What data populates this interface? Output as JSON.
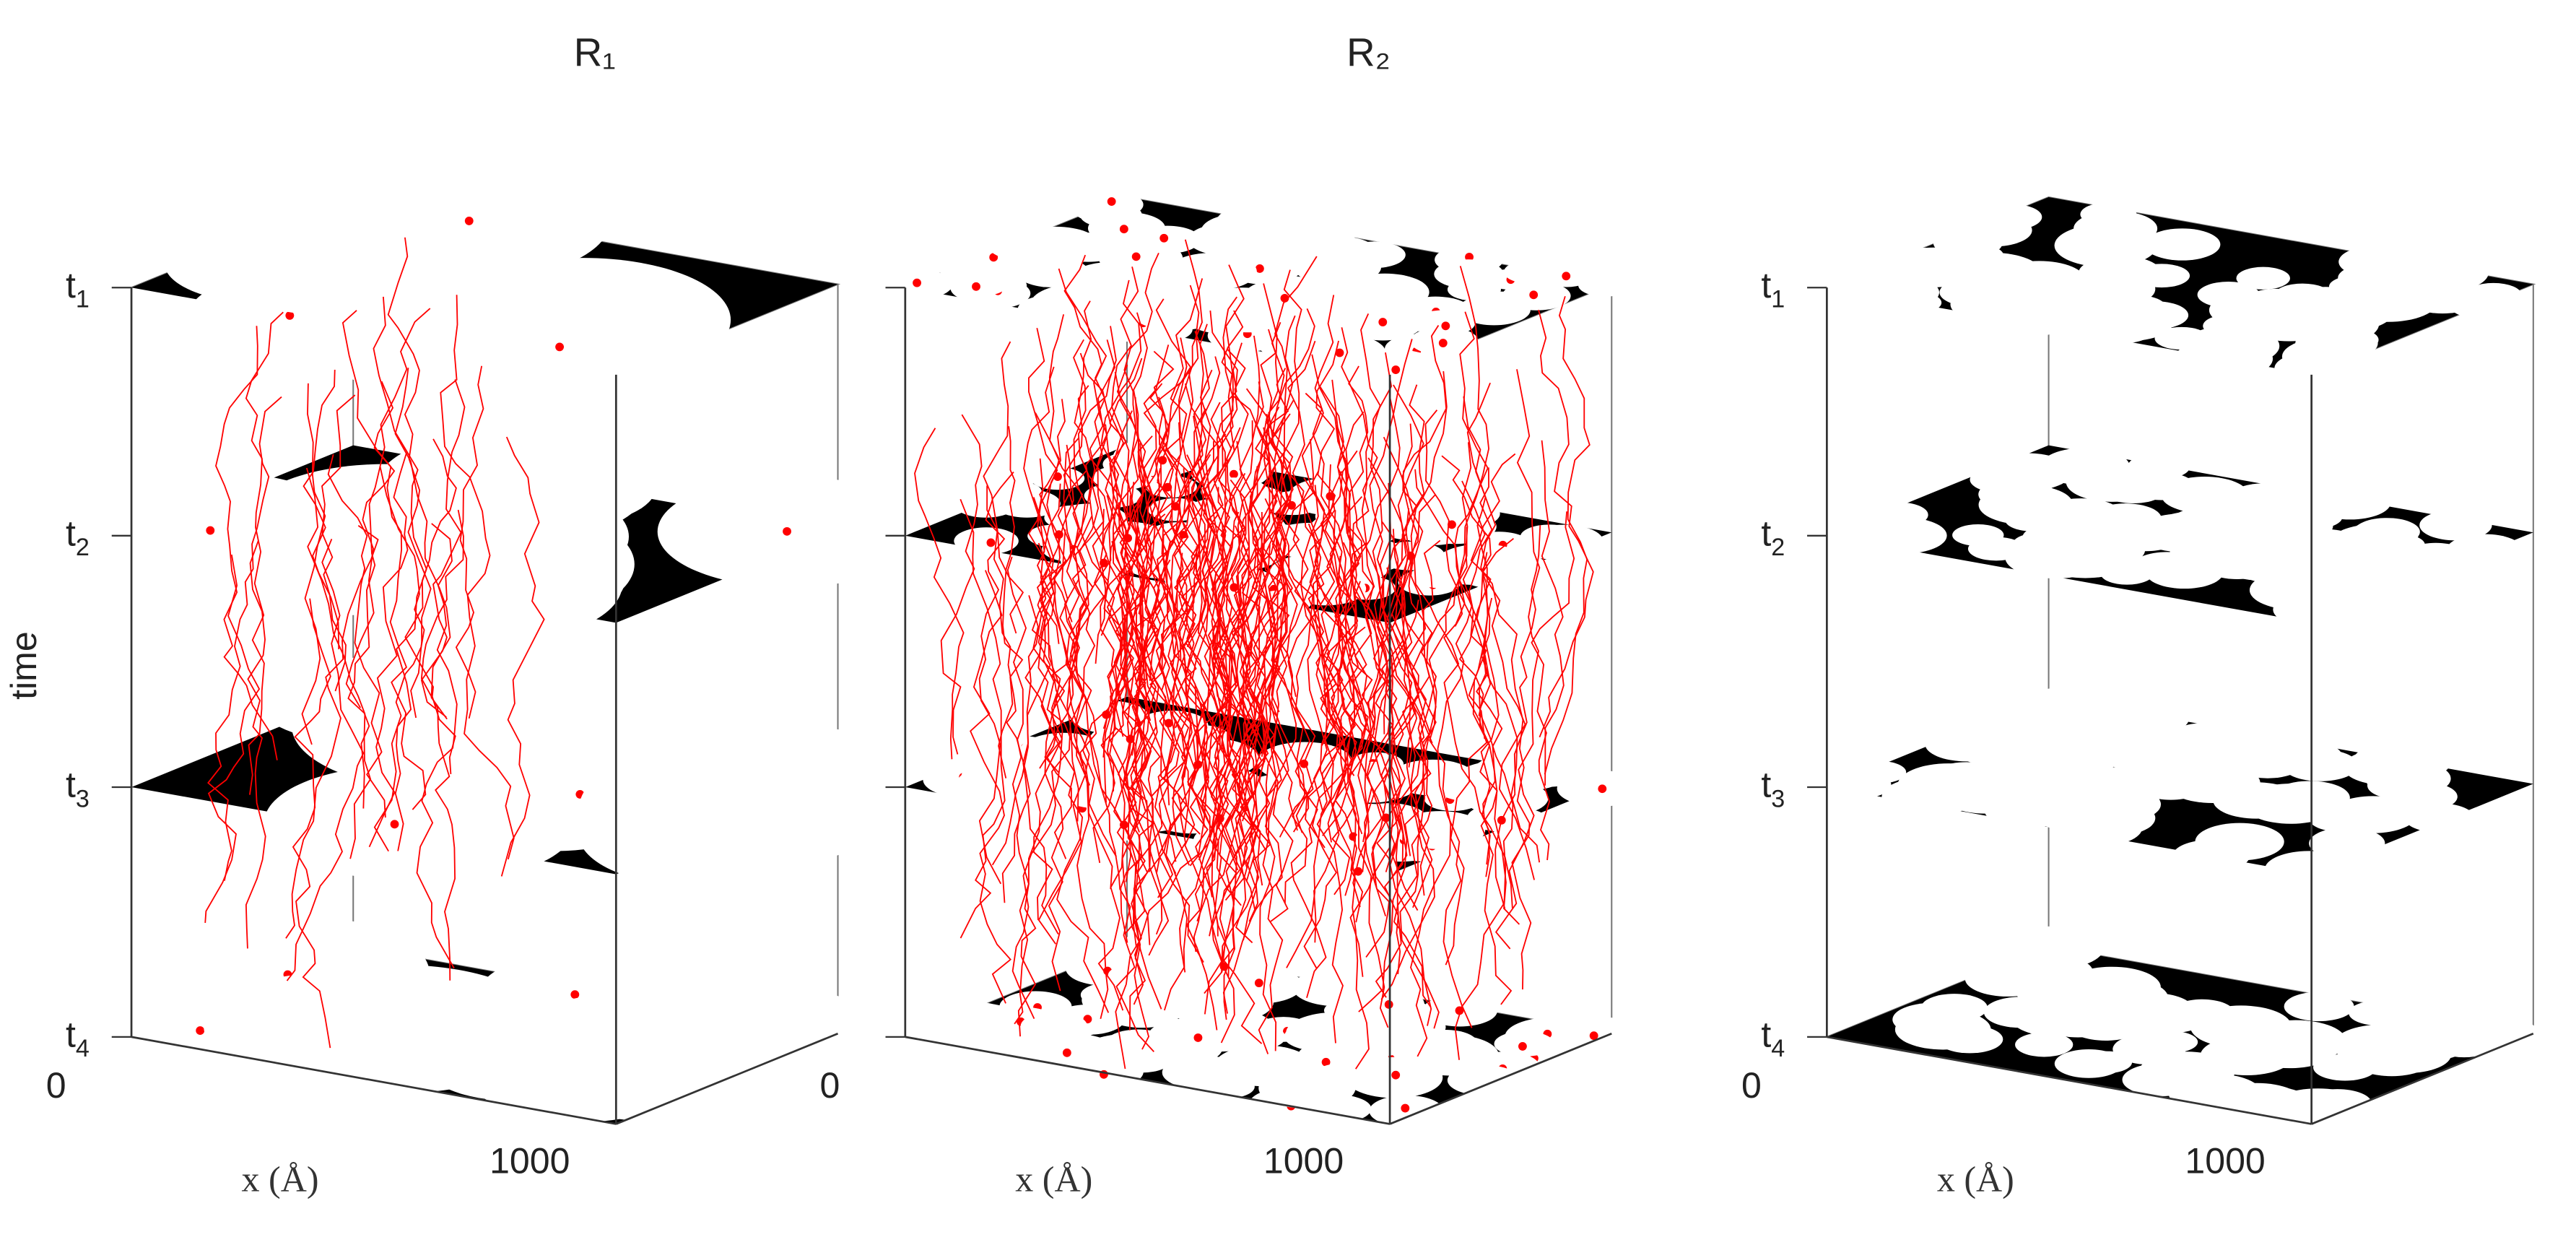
{
  "chart_data": [
    {
      "type": "scatter",
      "title": "R₁",
      "ylabel": "time",
      "xlabel": "x (Å)",
      "x_ticks": [
        "0",
        "1000"
      ],
      "time_ticks": [
        {
          "base": "t",
          "sub": "1"
        },
        {
          "base": "t",
          "sub": "2"
        },
        {
          "base": "t",
          "sub": "3"
        },
        {
          "base": "t",
          "sub": "4"
        }
      ],
      "xlim": [
        0,
        1000
      ],
      "grid": false,
      "trajectories": true,
      "points": true,
      "colors": {
        "trajectory": "#ff0000",
        "domain": "#000000",
        "background": "#ffffff"
      }
    },
    {
      "type": "scatter",
      "title": "R₂",
      "ylabel": "",
      "xlabel": "x (Å)",
      "x_ticks": [
        "0",
        "1000"
      ],
      "time_ticks": [],
      "xlim": [
        0,
        1000
      ],
      "grid": false,
      "trajectories": true,
      "points": true,
      "colors": {
        "trajectory": "#ff0000",
        "domain": "#000000",
        "background": "#ffffff"
      }
    },
    {
      "type": "heatmap",
      "title": "",
      "ylabel": "",
      "xlabel": "x (Å)",
      "x_ticks": [
        "0",
        "1000"
      ],
      "time_ticks": [
        {
          "base": "t",
          "sub": "1"
        },
        {
          "base": "t",
          "sub": "2"
        },
        {
          "base": "t",
          "sub": "3"
        },
        {
          "base": "t",
          "sub": "4"
        }
      ],
      "xlim": [
        0,
        1000
      ],
      "grid": false,
      "trajectories": false,
      "points": false,
      "colors": {
        "domain": "#000000",
        "background": "#ffffff"
      }
    }
  ]
}
